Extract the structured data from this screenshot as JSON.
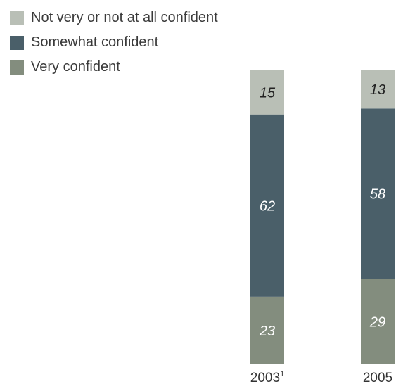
{
  "chart_data": {
    "type": "bar",
    "stacked": true,
    "categories": [
      "2003",
      "2005"
    ],
    "category_footnotes": [
      "1",
      ""
    ],
    "series": [
      {
        "name": "Very confident",
        "color": "#838d7e",
        "values": [
          23,
          29
        ]
      },
      {
        "name": "Somewhat confident",
        "color": "#4a5f69",
        "values": [
          62,
          58
        ]
      },
      {
        "name": "Not very or not at all confident",
        "color": "#b9bfb6",
        "values": [
          15,
          13
        ]
      }
    ],
    "ylim": [
      0,
      100
    ],
    "legend_position": "top-left",
    "legend_order": [
      "Not very or not at all confident",
      "Somewhat confident",
      "Very confident"
    ]
  }
}
